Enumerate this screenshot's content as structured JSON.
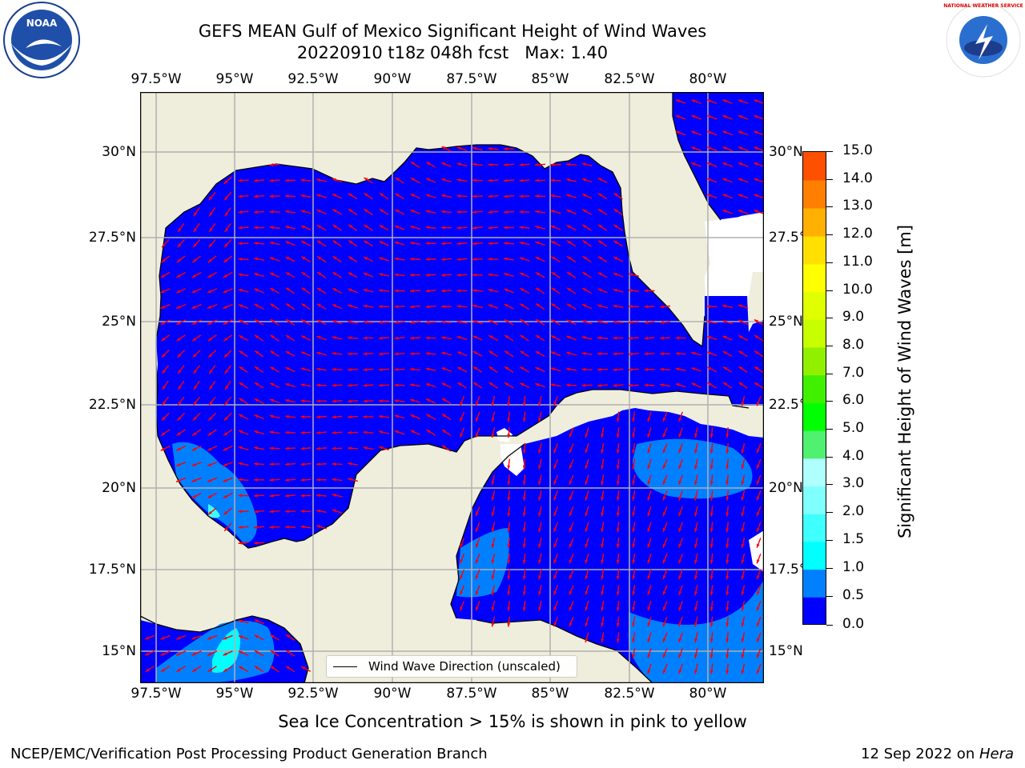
{
  "title_line1": "GEFS MEAN Gulf of Mexico Significant Height of Wind Waves",
  "title_line2": "20220910 t18z 048h fcst   Max: 1.40",
  "lon_ticks": [
    "97.5°W",
    "95°W",
    "92.5°W",
    "90°W",
    "87.5°W",
    "85°W",
    "82.5°W",
    "80°W"
  ],
  "lat_ticks": [
    "30°N",
    "27.5°N",
    "25°N",
    "22.5°N",
    "20°N",
    "17.5°N",
    "15°N"
  ],
  "lat_ticks_right": [
    "30°N",
    "27.5°",
    "25°N",
    "22.5°",
    "20°N",
    "17.5°",
    "15°N"
  ],
  "colorbar": {
    "label": "Significant Height of Wind Waves [m]",
    "ticks": [
      "15.0",
      "14.0",
      "13.0",
      "12.0",
      "11.0",
      "10.0",
      "9.0",
      "8.0",
      "7.0",
      "6.0",
      "5.0",
      "4.0",
      "3.0",
      "2.0",
      "1.5",
      "1.0",
      "0.5",
      "0.0"
    ],
    "colors": [
      "#0000ff",
      "#0080ff",
      "#00ffff",
      "#40ffff",
      "#80ffff",
      "#b0ffff",
      "#50f070",
      "#00ff00",
      "#40f000",
      "#90f000",
      "#c8ff00",
      "#e0ff00",
      "#ffff00",
      "#ffe000",
      "#ffb000",
      "#ff8000",
      "#ff5000",
      "#ff2000",
      "#ff0000"
    ]
  },
  "legend_label": "Wind Wave Direction (unscaled)",
  "subcaption": "Sea Ice Concentration > 15% is shown in pink to yellow",
  "footer_left": "NCEP/EMC/Verification Post Processing Product Generation Branch",
  "footer_date": "12 Sep 2022 on ",
  "footer_host": "Hera",
  "logo_left_text": "NOAA",
  "logo_right_text": "NATIONAL WEATHER SERVICE",
  "colors": {
    "ocean": "#0000ff",
    "land": "#efeedc",
    "arrow": "#ff0000",
    "grid": "#b0b0b0"
  }
}
